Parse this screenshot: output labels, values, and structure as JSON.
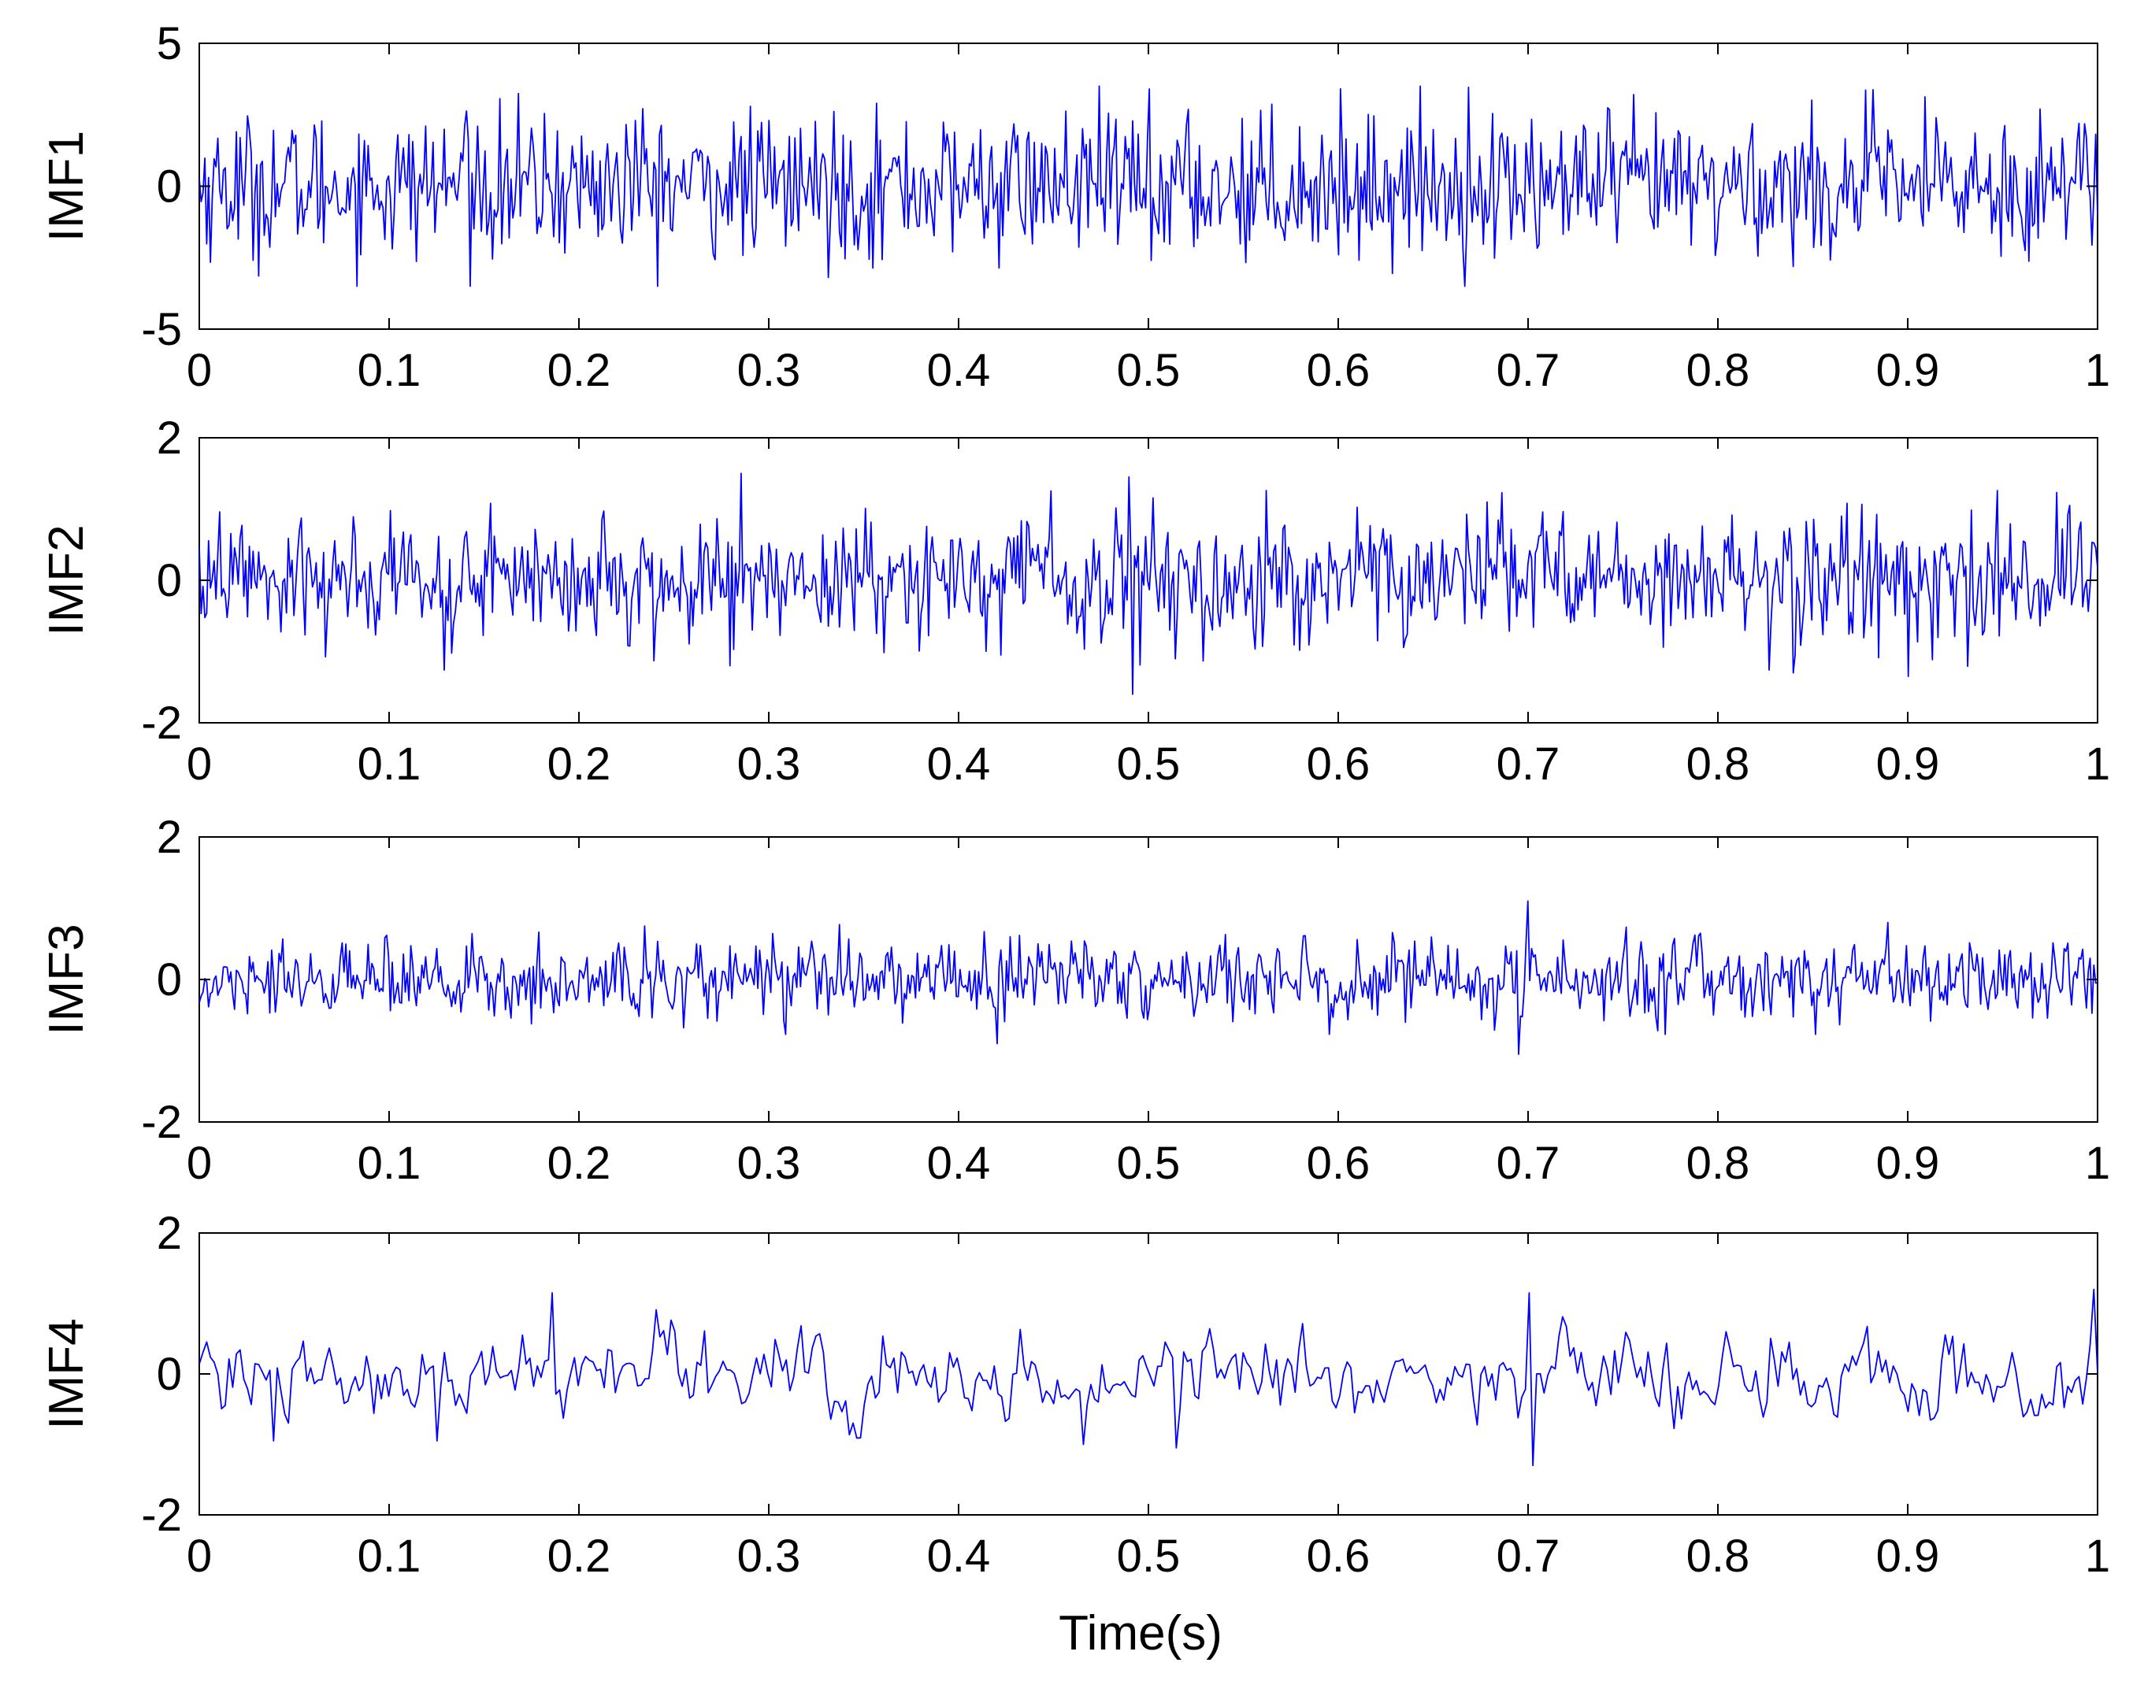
{
  "figure": {
    "xlabel": "Time(s)"
  },
  "chart_data": [
    {
      "type": "line",
      "ylabel": "IMF1",
      "xlim": [
        0,
        1
      ],
      "ylim": [
        -5,
        5
      ],
      "xticks": [
        "0",
        "0.1",
        "0.2",
        "0.3",
        "0.4",
        "0.5",
        "0.6",
        "0.7",
        "0.8",
        "0.9",
        "1"
      ],
      "yticks": [
        "-5",
        "0",
        "5"
      ],
      "ytick_values": [
        -5,
        0,
        5
      ],
      "grid": false,
      "series_color": "#0000ff",
      "samples": 1024,
      "amplitude_envelope_abs": 2.5,
      "peak": {
        "x": 0.5,
        "y": 3.4
      },
      "trough": {
        "x": 0.5,
        "y": -2.6
      },
      "landmarks": [
        {
          "x": 0.085,
          "y": -2.4
        },
        {
          "x": 0.14,
          "y": 2.1
        },
        {
          "x": 0.23,
          "y": 2.3
        },
        {
          "x": 0.3,
          "y": 2.3
        },
        {
          "x": 0.97,
          "y": 2.7
        },
        {
          "x": 0.99,
          "y": 2.2
        }
      ]
    },
    {
      "type": "line",
      "ylabel": "IMF2",
      "xlim": [
        0,
        1
      ],
      "ylim": [
        -2,
        2
      ],
      "xticks": [
        "0",
        "0.1",
        "0.2",
        "0.3",
        "0.4",
        "0.5",
        "0.6",
        "0.7",
        "0.8",
        "0.9",
        "1"
      ],
      "yticks": [
        "-2",
        "0",
        "2"
      ],
      "ytick_values": [
        -2,
        0,
        2
      ],
      "grid": false,
      "series_color": "#0000ff",
      "samples": 1024,
      "amplitude_envelope_abs": 0.9,
      "peak": {
        "x": 0.285,
        "y": 1.5
      },
      "trough": {
        "x": 0.492,
        "y": -1.6
      },
      "landmarks": [
        {
          "x": 0.49,
          "y": 1.45
        },
        {
          "x": 0.28,
          "y": -1.2
        },
        {
          "x": 0.84,
          "y": -1.3
        },
        {
          "x": 0.9,
          "y": -1.35
        },
        {
          "x": 0.985,
          "y": 1.05
        }
      ]
    },
    {
      "type": "line",
      "ylabel": "IMF3",
      "xlim": [
        0,
        1
      ],
      "ylim": [
        -2,
        2
      ],
      "xticks": [
        "0",
        "0.1",
        "0.2",
        "0.3",
        "0.4",
        "0.5",
        "0.6",
        "0.7",
        "0.8",
        "0.9",
        "1"
      ],
      "yticks": [
        "-2",
        "0",
        "2"
      ],
      "ytick_values": [
        -2,
        0,
        2
      ],
      "grid": false,
      "series_color": "#0000ff",
      "samples": 1024,
      "amplitude_envelope_abs": 0.55,
      "peak": {
        "x": 0.7,
        "y": 1.1
      },
      "trough": {
        "x": 0.695,
        "y": -1.05
      },
      "landmarks": [
        {
          "x": 0.42,
          "y": 1.0
        },
        {
          "x": 0.42,
          "y": -0.9
        },
        {
          "x": 0.89,
          "y": 0.8
        },
        {
          "x": 0.235,
          "y": 0.75
        }
      ]
    },
    {
      "type": "line",
      "ylabel": "IMF4",
      "xlim": [
        0,
        1
      ],
      "ylim": [
        -2,
        2
      ],
      "xticks": [
        "0",
        "0.1",
        "0.2",
        "0.3",
        "0.4",
        "0.5",
        "0.6",
        "0.7",
        "0.8",
        "0.9",
        "1"
      ],
      "yticks": [
        "-2",
        "0",
        "2"
      ],
      "ytick_values": [
        -2,
        0,
        2
      ],
      "grid": false,
      "series_color": "#0000ff",
      "samples": 512,
      "amplitude_envelope_abs": 0.65,
      "peak": {
        "x": 0.998,
        "y": 1.2
      },
      "trough": {
        "x": 0.703,
        "y": -1.3
      },
      "landmarks": [
        {
          "x": 0.185,
          "y": 1.15
        },
        {
          "x": 0.7,
          "y": 1.15
        },
        {
          "x": 0.04,
          "y": -0.95
        },
        {
          "x": 0.125,
          "y": -0.95
        },
        {
          "x": 0.465,
          "y": -1.0
        },
        {
          "x": 0.515,
          "y": -1.05
        }
      ]
    }
  ]
}
